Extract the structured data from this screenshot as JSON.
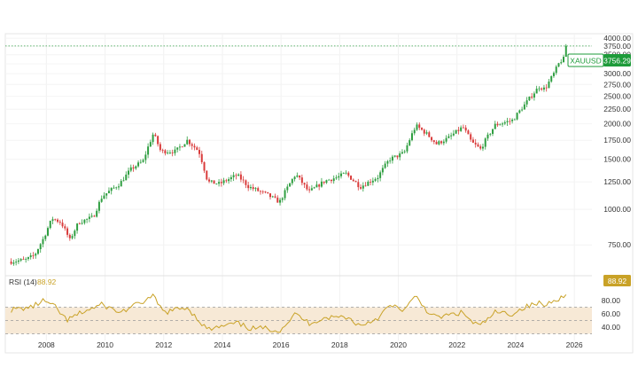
{
  "chart_data": {
    "type": "candlestick",
    "interval": "monthly",
    "symbol": "XAUUSD",
    "last_price": 3756.29,
    "last_price_label": "3756.29",
    "colors": {
      "up": "#2e9e40",
      "down": "#d93b3b",
      "rsi_line": "#c9a227",
      "rsi_band": "#f7e9d6",
      "axis_text": "#333333",
      "price_tag": "#1e9b3a"
    },
    "price_axis": {
      "scale": "log",
      "range": [
        610,
        4150
      ],
      "ticks": [
        4000,
        3750,
        3500,
        3250,
        3000,
        2750,
        2500,
        2250,
        2000,
        1750,
        1500,
        1250,
        1000,
        750
      ],
      "tick_labels": [
        "4000.00",
        "3750.00",
        "3500.00",
        "3250.00",
        "3000.00",
        "2750.00",
        "2500.00",
        "2250.00",
        "2000.00",
        "1750.00",
        "1500.00",
        "1250.00",
        "1000.00",
        "750.00"
      ]
    },
    "time_axis": {
      "start": 2006.6,
      "end": 2026.6,
      "ticks": [
        2008,
        2010,
        2012,
        2014,
        2016,
        2018,
        2020,
        2022,
        2024,
        2026
      ],
      "tick_labels": [
        "2008",
        "2010",
        "2012",
        "2014",
        "2016",
        "2018",
        "2020",
        "2022",
        "2024",
        "2026"
      ]
    },
    "price_anchors": [
      [
        2006.8,
        655
      ],
      [
        2007.3,
        665
      ],
      [
        2007.6,
        690
      ],
      [
        2007.9,
        790
      ],
      [
        2008.2,
        930
      ],
      [
        2008.5,
        900
      ],
      [
        2008.8,
        780
      ],
      [
        2009.1,
        900
      ],
      [
        2009.6,
        940
      ],
      [
        2009.9,
        1110
      ],
      [
        2010.5,
        1230
      ],
      [
        2010.9,
        1390
      ],
      [
        2011.3,
        1480
      ],
      [
        2011.65,
        1850
      ],
      [
        2011.9,
        1600
      ],
      [
        2012.4,
        1600
      ],
      [
        2012.8,
        1750
      ],
      [
        2013.2,
        1600
      ],
      [
        2013.5,
        1250
      ],
      [
        2013.9,
        1230
      ],
      [
        2014.5,
        1320
      ],
      [
        2014.9,
        1200
      ],
      [
        2015.5,
        1130
      ],
      [
        2015.95,
        1060
      ],
      [
        2016.5,
        1330
      ],
      [
        2016.95,
        1150
      ],
      [
        2017.5,
        1260
      ],
      [
        2017.95,
        1300
      ],
      [
        2018.2,
        1340
      ],
      [
        2018.7,
        1200
      ],
      [
        2019.3,
        1300
      ],
      [
        2019.7,
        1500
      ],
      [
        2020.2,
        1580
      ],
      [
        2020.6,
        1970
      ],
      [
        2020.95,
        1850
      ],
      [
        2021.3,
        1700
      ],
      [
        2021.7,
        1780
      ],
      [
        2022.2,
        1950
      ],
      [
        2022.5,
        1720
      ],
      [
        2022.8,
        1630
      ],
      [
        2023.3,
        1980
      ],
      [
        2023.9,
        2060
      ],
      [
        2024.3,
        2330
      ],
      [
        2024.8,
        2700
      ],
      [
        2025.0,
        2650
      ],
      [
        2025.3,
        3000
      ],
      [
        2025.5,
        3300
      ],
      [
        2025.66,
        3400
      ],
      [
        2025.75,
        3756.29
      ]
    ],
    "rsi": {
      "label": "RSI (14)",
      "value_label": "88.92",
      "value": 88.92,
      "range": [
        28,
        92
      ],
      "band": [
        30,
        70
      ],
      "midline": 50,
      "ticks": [
        80,
        60,
        40
      ],
      "tick_labels": [
        "80.00",
        "60.00",
        "40.00"
      ],
      "anchors": [
        [
          2006.8,
          66
        ],
        [
          2007.5,
          70
        ],
        [
          2007.9,
          80
        ],
        [
          2008.3,
          70
        ],
        [
          2008.7,
          50
        ],
        [
          2009.2,
          62
        ],
        [
          2009.9,
          74
        ],
        [
          2010.5,
          62
        ],
        [
          2011.0,
          72
        ],
        [
          2011.65,
          86
        ],
        [
          2012.0,
          62
        ],
        [
          2012.8,
          70
        ],
        [
          2013.2,
          50
        ],
        [
          2013.5,
          36
        ],
        [
          2013.9,
          40
        ],
        [
          2014.5,
          46
        ],
        [
          2014.95,
          38
        ],
        [
          2015.5,
          38
        ],
        [
          2015.95,
          35
        ],
        [
          2016.5,
          60
        ],
        [
          2016.95,
          46
        ],
        [
          2017.5,
          54
        ],
        [
          2018.2,
          56
        ],
        [
          2018.7,
          42
        ],
        [
          2019.3,
          54
        ],
        [
          2019.7,
          72
        ],
        [
          2020.2,
          66
        ],
        [
          2020.6,
          86
        ],
        [
          2020.95,
          66
        ],
        [
          2021.3,
          54
        ],
        [
          2021.7,
          58
        ],
        [
          2022.2,
          62
        ],
        [
          2022.5,
          48
        ],
        [
          2022.8,
          42
        ],
        [
          2023.3,
          62
        ],
        [
          2023.9,
          60
        ],
        [
          2024.3,
          70
        ],
        [
          2024.8,
          76
        ],
        [
          2025.0,
          72
        ],
        [
          2025.3,
          82
        ],
        [
          2025.66,
          85
        ],
        [
          2025.75,
          88.92
        ]
      ]
    },
    "grid": "vertical-and-horizontal-light",
    "legend": "none"
  }
}
